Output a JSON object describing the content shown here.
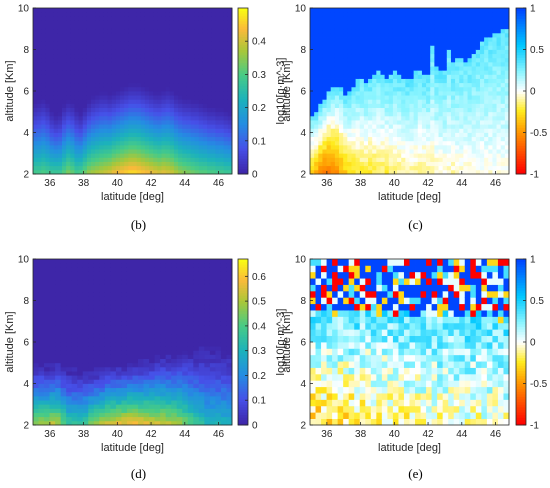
{
  "chart_data": [
    {
      "type": "heatmap",
      "caption": "(b)",
      "xlabel": "latitude [deg]",
      "ylabel": "altitude [Km]",
      "xticks": [
        36,
        38,
        40,
        42,
        44,
        46
      ],
      "yticks": [
        2,
        4,
        6,
        8,
        10
      ],
      "xlim": [
        35,
        46.8
      ],
      "ylim": [
        2,
        10
      ],
      "colormap": "parula",
      "colorbar": {
        "label": "log10[g·m^-3]",
        "ticks": [
          0,
          0.1,
          0.2,
          0.3,
          0.4
        ],
        "lim": [
          0,
          0.5
        ]
      },
      "nx": 48,
      "ny": 40,
      "profile": {
        "top_altitude": [
          5.5,
          5.6,
          5.7,
          5.5,
          5.1,
          4.9,
          5.0,
          5.4,
          5.6,
          5.5,
          5.2,
          5.0,
          5.3,
          5.6,
          5.8,
          5.9,
          6.0,
          6.0,
          5.9,
          6.0,
          6.1,
          6.2,
          6.3,
          6.4,
          6.4,
          6.4,
          6.3,
          6.2,
          6.1,
          6.0,
          6.0,
          6.1,
          6.2,
          6.1,
          5.9,
          5.8,
          5.7,
          5.7,
          5.6,
          5.6,
          5.5,
          5.4,
          5.3,
          5.3,
          5.2,
          5.2,
          5.1,
          5.0
        ],
        "surface_value": [
          0.28,
          0.28,
          0.29,
          0.28,
          0.27,
          0.27,
          0.27,
          0.3,
          0.33,
          0.31,
          0.28,
          0.29,
          0.32,
          0.35,
          0.36,
          0.37,
          0.38,
          0.39,
          0.4,
          0.42,
          0.43,
          0.44,
          0.45,
          0.46,
          0.46,
          0.45,
          0.44,
          0.43,
          0.42,
          0.41,
          0.4,
          0.41,
          0.4,
          0.39,
          0.37,
          0.35,
          0.34,
          0.33,
          0.32,
          0.31,
          0.3,
          0.3,
          0.29,
          0.29,
          0.28,
          0.28,
          0.27,
          0.27
        ],
        "noise": 0
      }
    },
    {
      "type": "heatmap",
      "caption": "(c)",
      "xlabel": "latitude [deg]",
      "ylabel": "altitude [Km]",
      "xticks": [
        36,
        38,
        40,
        42,
        44,
        46
      ],
      "yticks": [
        2,
        4,
        6,
        8,
        10
      ],
      "xlim": [
        35,
        46.8
      ],
      "ylim": [
        2,
        10
      ],
      "colormap": "jet",
      "colorbar": {
        "label": "",
        "ticks": [
          -1,
          -0.5,
          0,
          0.5,
          1
        ],
        "lim": [
          -1,
          1
        ]
      },
      "nx": 48,
      "ny": 40,
      "profile": {
        "top_altitude": [
          4.8,
          5.0,
          5.3,
          5.6,
          5.9,
          6.1,
          6.2,
          6.1,
          5.8,
          5.9,
          6.2,
          6.5,
          6.6,
          6.4,
          6.5,
          6.8,
          6.9,
          6.8,
          6.6,
          6.7,
          6.9,
          6.8,
          6.6,
          6.5,
          6.6,
          6.9,
          7.0,
          6.8,
          6.7,
          8.2,
          7.2,
          7.0,
          6.9,
          8.0,
          7.3,
          7.5,
          7.6,
          7.4,
          7.5,
          7.8,
          8.0,
          8.3,
          8.5,
          8.6,
          8.7,
          8.8,
          8.9,
          9.0
        ],
        "surface_value": [
          -0.4,
          -0.45,
          -0.55,
          -0.6,
          -0.62,
          -0.6,
          -0.55,
          -0.45,
          -0.35,
          -0.3,
          -0.28,
          -0.25,
          -0.22,
          -0.2,
          -0.25,
          -0.22,
          -0.2,
          -0.18,
          -0.2,
          -0.18,
          -0.15,
          -0.14,
          -0.12,
          -0.12,
          -0.1,
          -0.12,
          -0.15,
          -0.14,
          -0.12,
          -0.1,
          -0.08,
          -0.08,
          -0.06,
          -0.06,
          -0.08,
          -0.06,
          -0.05,
          -0.05,
          -0.04,
          -0.04,
          -0.04,
          -0.03,
          -0.03,
          -0.03,
          -0.02,
          -0.02,
          -0.02,
          -0.02
        ],
        "noise": 0.12
      }
    },
    {
      "type": "heatmap",
      "caption": "(d)",
      "xlabel": "latitude [deg]",
      "ylabel": "altitude [Km]",
      "xticks": [
        36,
        38,
        40,
        42,
        44,
        46
      ],
      "yticks": [
        2,
        4,
        6,
        8,
        10
      ],
      "xlim": [
        35,
        46.8
      ],
      "ylim": [
        2,
        10
      ],
      "colormap": "parula",
      "colorbar": {
        "label": "log10[g·m^-3]",
        "ticks": [
          0,
          0.1,
          0.2,
          0.3,
          0.4,
          0.5,
          0.6
        ],
        "lim": [
          0,
          0.67
        ]
      },
      "nx": 36,
      "ny": 40,
      "profile": {
        "top_altitude": [
          5.0,
          5.0,
          4.9,
          5.0,
          5.1,
          4.9,
          4.8,
          4.8,
          4.7,
          4.8,
          4.8,
          4.7,
          4.8,
          4.9,
          5.0,
          5.0,
          5.0,
          5.1,
          5.1,
          5.1,
          5.2,
          5.2,
          5.3,
          5.4,
          5.4,
          5.5,
          5.5,
          5.6,
          5.6,
          5.6,
          5.7,
          5.7,
          5.7,
          5.7,
          5.7,
          5.6
        ],
        "surface_value": [
          0.46,
          0.48,
          0.5,
          0.52,
          0.5,
          0.42,
          0.36,
          0.35,
          0.35,
          0.38,
          0.44,
          0.5,
          0.52,
          0.54,
          0.55,
          0.56,
          0.57,
          0.58,
          0.58,
          0.57,
          0.56,
          0.55,
          0.54,
          0.53,
          0.52,
          0.5,
          0.48,
          0.44,
          0.4,
          0.36,
          0.33,
          0.3,
          0.3,
          0.29,
          0.29,
          0.29
        ],
        "noise": 0.05
      }
    },
    {
      "type": "heatmap",
      "caption": "(e)",
      "xlabel": "latitude [deg]",
      "ylabel": "altitude [Km]",
      "xticks": [
        36,
        38,
        40,
        42,
        44,
        46
      ],
      "yticks": [
        2,
        4,
        6,
        8,
        10
      ],
      "xlim": [
        35,
        46.8
      ],
      "ylim": [
        2,
        10
      ],
      "colormap": "jet",
      "colorbar": {
        "label": "",
        "ticks": [
          -1,
          -0.5,
          0,
          0.5,
          1
        ],
        "lim": [
          -1,
          1
        ]
      },
      "nx": 36,
      "ny": 26,
      "profile": {
        "top_altitude": [
          7.5,
          7.4,
          7.5,
          7.6,
          7.3,
          7.4,
          7.5,
          7.3,
          7.4,
          7.6,
          7.5,
          7.4,
          7.3,
          7.5,
          7.4,
          7.3,
          7.4,
          7.5,
          7.3,
          7.2,
          7.4,
          7.3,
          7.2,
          7.3,
          7.4,
          7.2,
          7.3,
          7.1,
          7.2,
          7.3,
          7.4,
          7.1,
          7.2,
          7.3,
          7.0,
          7.1
        ],
        "surface_value": [
          -0.3,
          -0.3,
          -0.28,
          -0.3,
          -0.26,
          -0.25,
          -0.22,
          -0.24,
          -0.22,
          -0.2,
          -0.2,
          -0.18,
          -0.18,
          -0.16,
          -0.14,
          -0.14,
          -0.12,
          -0.12,
          -0.1,
          -0.1,
          -0.08,
          -0.08,
          -0.06,
          -0.06,
          -0.05,
          -0.05,
          -0.04,
          -0.04,
          -0.03,
          -0.03,
          -0.03,
          -0.02,
          -0.02,
          -0.02,
          -0.02,
          -0.02
        ],
        "noise": 0.45
      }
    }
  ]
}
